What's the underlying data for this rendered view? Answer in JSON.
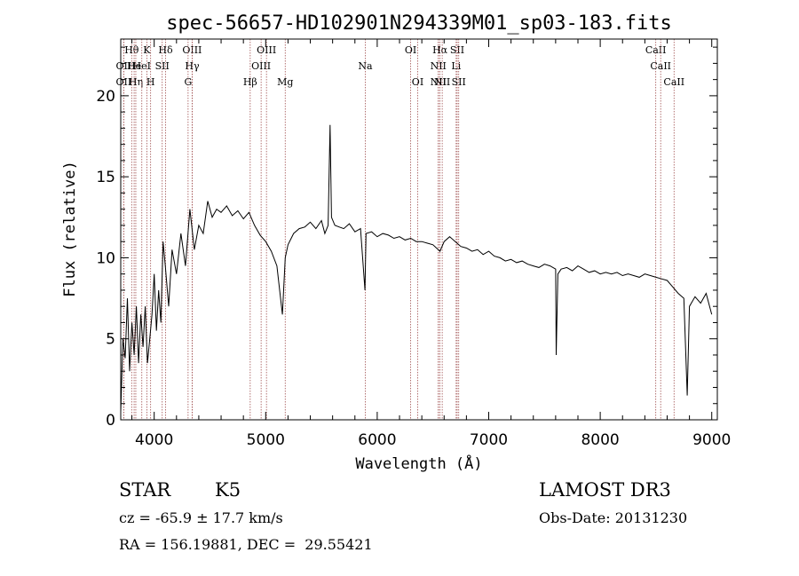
{
  "chart_data": {
    "type": "line",
    "title": "spec-56657-HD102901N294339M01_sp03-183.fits",
    "xlabel": "Wavelength (Å)",
    "ylabel": "Flux (relative)",
    "xlim": [
      3700,
      9050
    ],
    "ylim": [
      0,
      23.5
    ],
    "xticks": [
      4000,
      5000,
      6000,
      7000,
      8000,
      9000
    ],
    "yticks": [
      0,
      5,
      10,
      15,
      20
    ],
    "line_color": "#000000",
    "marker_color": "#a05050",
    "series": [
      {
        "x": [
          3700,
          3720,
          3740,
          3760,
          3780,
          3800,
          3820,
          3840,
          3860,
          3880,
          3900,
          3920,
          3940,
          3960,
          3980,
          4000,
          4020,
          4040,
          4060,
          4080,
          4100,
          4130,
          4160,
          4200,
          4240,
          4280,
          4320,
          4360,
          4400,
          4440,
          4480,
          4520,
          4560,
          4600,
          4650,
          4700,
          4750,
          4800,
          4850,
          4900,
          4950,
          5000,
          5050,
          5100,
          5150,
          5175,
          5200,
          5250,
          5300,
          5350,
          5400,
          5450,
          5500,
          5530,
          5560,
          5577,
          5590,
          5620,
          5660,
          5700,
          5750,
          5800,
          5850,
          5890,
          5900,
          5950,
          6000,
          6050,
          6100,
          6150,
          6200,
          6250,
          6300,
          6350,
          6400,
          6450,
          6500,
          6563,
          6600,
          6650,
          6700,
          6750,
          6800,
          6850,
          6900,
          6950,
          7000,
          7050,
          7100,
          7150,
          7200,
          7250,
          7300,
          7350,
          7400,
          7450,
          7500,
          7550,
          7600,
          7605,
          7620,
          7650,
          7700,
          7750,
          7800,
          7850,
          7900,
          7950,
          8000,
          8050,
          8100,
          8150,
          8200,
          8250,
          8300,
          8350,
          8400,
          8450,
          8500,
          8550,
          8600,
          8650,
          8700,
          8750,
          8780,
          8800,
          8850,
          8900,
          8950,
          9000
        ],
        "y": [
          0.5,
          5.0,
          3.8,
          7.5,
          3.0,
          6.0,
          4.0,
          7.0,
          3.5,
          6.5,
          4.5,
          7.0,
          3.5,
          5.0,
          6.5,
          9.0,
          5.5,
          8.0,
          6.0,
          11.0,
          9.5,
          7.0,
          10.5,
          9.0,
          11.5,
          9.5,
          13.0,
          10.5,
          12.0,
          11.5,
          13.5,
          12.5,
          13.0,
          12.8,
          13.2,
          12.6,
          12.9,
          12.4,
          12.8,
          12.0,
          11.4,
          11.0,
          10.4,
          9.5,
          6.5,
          10.0,
          10.8,
          11.5,
          11.8,
          11.9,
          12.2,
          11.8,
          12.3,
          11.5,
          12.0,
          18.2,
          12.5,
          12.0,
          11.9,
          11.8,
          12.1,
          11.6,
          11.8,
          8.0,
          11.5,
          11.6,
          11.3,
          11.5,
          11.4,
          11.2,
          11.3,
          11.1,
          11.2,
          11.0,
          11.0,
          10.9,
          10.8,
          10.4,
          11.0,
          11.3,
          11.0,
          10.7,
          10.6,
          10.4,
          10.5,
          10.2,
          10.4,
          10.1,
          10.0,
          9.8,
          9.9,
          9.7,
          9.8,
          9.6,
          9.5,
          9.4,
          9.6,
          9.5,
          9.3,
          4.0,
          9.0,
          9.3,
          9.4,
          9.2,
          9.5,
          9.3,
          9.1,
          9.2,
          9.0,
          9.1,
          9.0,
          9.1,
          8.9,
          9.0,
          8.9,
          8.8,
          9.0,
          8.9,
          8.8,
          8.7,
          8.6,
          8.2,
          7.8,
          7.5,
          1.5,
          7.0,
          7.6,
          7.2,
          7.8,
          6.5
        ]
      }
    ],
    "line_markers": [
      {
        "label": "OII",
        "x": 3727,
        "row": 1
      },
      {
        "label": "OII",
        "x": 3727,
        "row": 2
      },
      {
        "label": "Hθ",
        "x": 3798,
        "row": 0
      },
      {
        "label": "He",
        "x": 3820,
        "row": 1
      },
      {
        "label": "Hη",
        "x": 3835,
        "row": 2
      },
      {
        "label": "HeI",
        "x": 3889,
        "row": 1
      },
      {
        "label": "K",
        "x": 3934,
        "row": 0
      },
      {
        "label": "H",
        "x": 3968,
        "row": 2
      },
      {
        "label": "SII",
        "x": 4072,
        "row": 1
      },
      {
        "label": "Hδ",
        "x": 4102,
        "row": 0
      },
      {
        "label": "OIII",
        "x": 4340,
        "row": 0
      },
      {
        "label": "Hγ",
        "x": 4341,
        "row": 1
      },
      {
        "label": "G",
        "x": 4304,
        "row": 2
      },
      {
        "label": "Hβ",
        "x": 4861,
        "row": 2
      },
      {
        "label": "OIII",
        "x": 4959,
        "row": 1
      },
      {
        "label": "OIII",
        "x": 5007,
        "row": 0
      },
      {
        "label": "Mg",
        "x": 5175,
        "row": 2
      },
      {
        "label": "Na",
        "x": 5893,
        "row": 1
      },
      {
        "label": "OI",
        "x": 6300,
        "row": 0
      },
      {
        "label": "OI",
        "x": 6363,
        "row": 2
      },
      {
        "label": "NII",
        "x": 6548,
        "row": 1
      },
      {
        "label": "NII",
        "x": 6548,
        "row": 2
      },
      {
        "label": "Hα",
        "x": 6563,
        "row": 0
      },
      {
        "label": "NII",
        "x": 6583,
        "row": 2
      },
      {
        "label": "SII",
        "x": 6717,
        "row": 0
      },
      {
        "label": "Li",
        "x": 6708,
        "row": 1
      },
      {
        "label": "SII",
        "x": 6731,
        "row": 2
      },
      {
        "label": "CaII",
        "x": 8498,
        "row": 0
      },
      {
        "label": "CaII",
        "x": 8542,
        "row": 1
      },
      {
        "label": "CaII",
        "x": 8662,
        "row": 2
      }
    ]
  },
  "info": {
    "object_type": "STAR",
    "subclass": "K5",
    "survey": "LAMOST DR3",
    "cz": "cz = -65.9 ± 17.7 km/s",
    "obs_date": "Obs-Date: 20131230",
    "coords": "RA = 156.19881, DEC =  29.55421"
  }
}
